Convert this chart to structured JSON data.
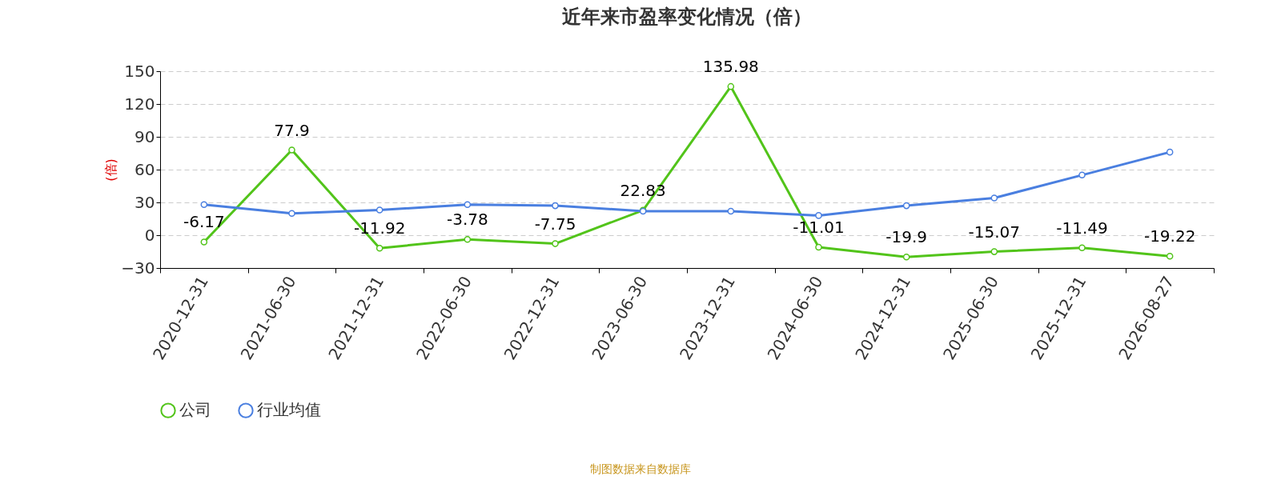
{
  "chart_data": {
    "type": "line",
    "title": "近年来市盈率变化情况（倍）",
    "ylabel": "(倍)",
    "categories": [
      "2020-12-31",
      "2021-06-30",
      "2021-12-31",
      "2022-06-30",
      "2022-12-31",
      "2023-06-30",
      "2023-12-31",
      "2024-06-30",
      "2024-12-31",
      "2025-06-30",
      "2025-12-31",
      "2026-08-27"
    ],
    "series": [
      {
        "name": "公司",
        "color": "#52c41a",
        "values": [
          -6.17,
          77.9,
          -11.92,
          -3.78,
          -7.75,
          22.83,
          135.98,
          -11.01,
          -19.9,
          -15.07,
          -11.49,
          -19.22
        ],
        "value_labels": [
          "-6.17",
          "77.9",
          "-11.92",
          "-3.78",
          "-7.75",
          "22.83",
          "135.98",
          "-11.01",
          "-19.9",
          "-15.07",
          "-11.49",
          "-19.22"
        ]
      },
      {
        "name": "行业均值",
        "color": "#4a7fe0",
        "values": [
          28,
          20,
          23,
          28,
          27,
          22,
          22,
          18,
          27,
          34,
          55,
          76
        ]
      }
    ],
    "ylim": [
      -30,
      150
    ],
    "yticks": [
      -30,
      0,
      30,
      60,
      90,
      120,
      150
    ],
    "grid": "y",
    "legend": "bottom",
    "marker": "circle",
    "line_style": "solid",
    "annotations": [
      "制图数据来自数据库"
    ]
  }
}
